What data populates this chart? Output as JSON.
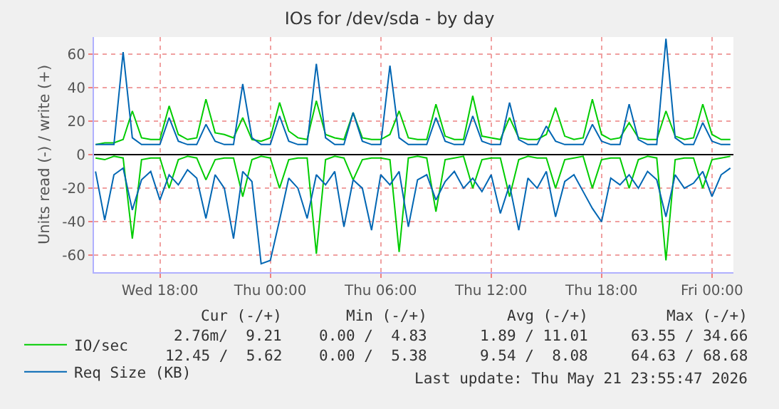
{
  "chart_data": {
    "type": "line",
    "title": "IOs for /dev/sda - by day",
    "ylabel": "Units read (-) / write (+)",
    "x": [
      "2026-05-20T14:30",
      "2026-05-20T15:00",
      "2026-05-20T15:30",
      "2026-05-20T16:00",
      "2026-05-20T16:30",
      "2026-05-20T17:00",
      "2026-05-20T17:30",
      "2026-05-20T18:00",
      "2026-05-20T18:30",
      "2026-05-20T19:00",
      "2026-05-20T19:30",
      "2026-05-20T20:00",
      "2026-05-20T20:30",
      "2026-05-20T21:00",
      "2026-05-20T21:30",
      "2026-05-20T22:00",
      "2026-05-20T22:30",
      "2026-05-20T23:00",
      "2026-05-20T23:30",
      "2026-05-21T00:00",
      "2026-05-21T00:30",
      "2026-05-21T01:00",
      "2026-05-21T01:30",
      "2026-05-21T02:00",
      "2026-05-21T02:30",
      "2026-05-21T03:00",
      "2026-05-21T03:30",
      "2026-05-21T04:00",
      "2026-05-21T04:30",
      "2026-05-21T05:00",
      "2026-05-21T05:30",
      "2026-05-21T06:00",
      "2026-05-21T06:30",
      "2026-05-21T07:00",
      "2026-05-21T07:30",
      "2026-05-21T08:00",
      "2026-05-21T08:30",
      "2026-05-21T09:00",
      "2026-05-21T09:30",
      "2026-05-21T10:00",
      "2026-05-21T10:30",
      "2026-05-21T11:00",
      "2026-05-21T11:30",
      "2026-05-21T12:00",
      "2026-05-21T12:30",
      "2026-05-21T13:00",
      "2026-05-21T13:30",
      "2026-05-21T14:00",
      "2026-05-21T14:30",
      "2026-05-21T15:00",
      "2026-05-21T15:30",
      "2026-05-21T16:00",
      "2026-05-21T16:30",
      "2026-05-21T17:00",
      "2026-05-21T17:30",
      "2026-05-21T18:00",
      "2026-05-21T18:30",
      "2026-05-21T19:00",
      "2026-05-21T19:30",
      "2026-05-21T20:00",
      "2026-05-21T20:30",
      "2026-05-21T21:00",
      "2026-05-21T21:30",
      "2026-05-21T22:00",
      "2026-05-21T22:30",
      "2026-05-21T23:00",
      "2026-05-21T23:30",
      "2026-05-22T00:00",
      "2026-05-22T00:30",
      "2026-05-22T01:00"
    ],
    "series": [
      {
        "color": "#00cc00",
        "values": [
          -2,
          -3,
          -1,
          -2,
          -50,
          -3,
          -2,
          -2,
          -20,
          -3,
          -1,
          -2,
          -15,
          -3,
          -2,
          -2,
          -25,
          -3,
          -1,
          -2,
          -20,
          -3,
          -2,
          -2,
          -59,
          -3,
          -1,
          -2,
          -15,
          -3,
          -2,
          -2,
          -3,
          -58,
          -2,
          -1,
          -2,
          -34,
          -3,
          -2,
          -1,
          -20,
          -3,
          -2,
          -2,
          -25,
          -3,
          -1,
          -2,
          -2,
          -20,
          -3,
          -2,
          -1,
          -20,
          -3,
          -2,
          -2,
          -20,
          -3,
          -1,
          -2,
          -63,
          -3,
          -2,
          -2,
          -20,
          -3,
          -2,
          -1
        ]
      },
      {
        "color": "#0066b3",
        "values": [
          -10,
          -39,
          -12,
          -8,
          -33,
          -15,
          -10,
          -27,
          -12,
          -18,
          -9,
          -14,
          -38,
          -12,
          -20,
          -50,
          -10,
          -16,
          -65,
          -63,
          -39,
          -14,
          -20,
          -38,
          -12,
          -18,
          -10,
          -43,
          -15,
          -20,
          -45,
          -12,
          -18,
          -10,
          -43,
          -15,
          -12,
          -27,
          -16,
          -10,
          -20,
          -14,
          -22,
          -12,
          -35,
          -18,
          -45,
          -14,
          -20,
          -10,
          -37,
          -16,
          -12,
          -22,
          -32,
          -40,
          -14,
          -18,
          -12,
          -20,
          -10,
          -15,
          -37,
          -12,
          -20,
          -17,
          -10,
          -25,
          -12,
          -8
        ]
      },
      {
        "name": "IO/sec",
        "color": "#00cc00",
        "values": [
          6,
          7,
          7,
          9,
          26,
          10,
          9,
          9,
          29,
          12,
          9,
          10,
          33,
          13,
          12,
          10,
          22,
          9,
          8,
          10,
          31,
          14,
          10,
          9,
          32,
          12,
          10,
          9,
          25,
          10,
          9,
          9,
          12,
          26,
          10,
          9,
          9,
          30,
          11,
          9,
          9,
          35,
          11,
          10,
          9,
          22,
          10,
          9,
          9,
          12,
          28,
          11,
          9,
          10,
          33,
          12,
          9,
          10,
          19,
          10,
          9,
          9,
          26,
          11,
          9,
          10,
          30,
          12,
          9,
          9
        ]
      },
      {
        "name": "Req Size (KB)",
        "color": "#0066b3",
        "values": [
          6,
          6,
          6,
          61,
          10,
          6,
          6,
          6,
          22,
          8,
          6,
          6,
          18,
          8,
          6,
          6,
          42,
          10,
          6,
          6,
          23,
          8,
          6,
          6,
          54,
          10,
          6,
          6,
          25,
          8,
          6,
          6,
          53,
          10,
          6,
          6,
          6,
          22,
          8,
          6,
          6,
          23,
          8,
          6,
          6,
          31,
          9,
          6,
          6,
          17,
          8,
          6,
          6,
          6,
          18,
          8,
          6,
          6,
          30,
          9,
          6,
          6,
          69,
          10,
          6,
          6,
          19,
          8,
          6,
          6
        ]
      }
    ],
    "xlim": [
      "2026-05-20T14:25",
      "2026-05-22T01:10"
    ],
    "xticks": [
      {
        "value": "2026-05-20T18:00",
        "label": "Wed 18:00"
      },
      {
        "value": "2026-05-21T00:00",
        "label": "Thu 00:00"
      },
      {
        "value": "2026-05-21T06:00",
        "label": "Thu 06:00"
      },
      {
        "value": "2026-05-21T12:00",
        "label": "Thu 12:00"
      },
      {
        "value": "2026-05-21T18:00",
        "label": "Thu 18:00"
      },
      {
        "value": "2026-05-22T00:00",
        "label": "Fri 00:00"
      }
    ],
    "ylim": [
      -70,
      70
    ],
    "yticks": [
      -60,
      -40,
      -20,
      0,
      20,
      40,
      60
    ],
    "ref_lines": [
      {
        "axis": "y",
        "value": 0,
        "color": "#000000"
      }
    ],
    "grid": true,
    "legend": "bottom left",
    "marker": "none",
    "line_style": "solid",
    "annotations": [
      "Cur (-/+)",
      "Min (-/+)",
      "Avg (-/+)",
      "Max (-/+)",
      "2.76m/  9.21",
      "0.00 /  4.83",
      "1.89 / 11.01",
      "63.55 / 34.66",
      "12.45 /  5.62",
      "0.00 /  5.38",
      "9.54 /  8.08",
      "64.63 / 68.68",
      "Last update: Thu May 21 23:55:47 2026"
    ]
  }
}
